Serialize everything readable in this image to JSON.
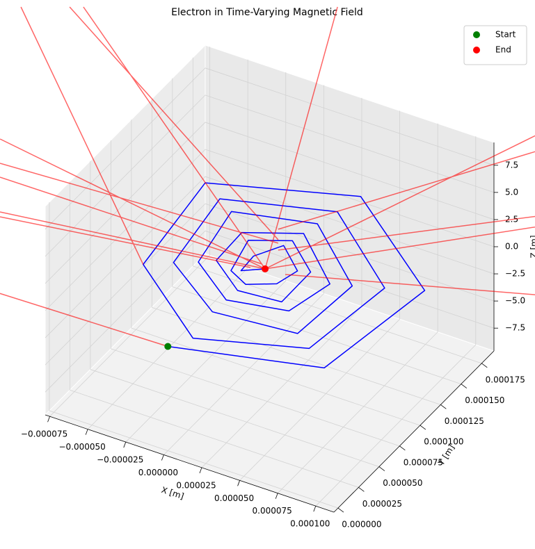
{
  "chart_data": {
    "type": "line3d",
    "title": "Electron in Time-Varying Magnetic Field",
    "xlabel": "X [m]",
    "ylabel": "Y [m]",
    "zlabel": "Z [m]",
    "xlim": [
      -7.8e-05,
      0.000112
    ],
    "ylim": [
      -5e-06,
      0.00019
    ],
    "zlim": [
      -9.6,
      9.6
    ],
    "xticks": [
      {
        "value": -7.5e-05,
        "label": "−0.000075"
      },
      {
        "value": -5e-05,
        "label": "−0.000050"
      },
      {
        "value": -2.5e-05,
        "label": "−0.000025"
      },
      {
        "value": 0,
        "label": "0.000000"
      },
      {
        "value": 2.5e-05,
        "label": "0.000025"
      },
      {
        "value": 5e-05,
        "label": "0.000050"
      },
      {
        "value": 7.5e-05,
        "label": "0.000075"
      },
      {
        "value": 0.0001,
        "label": "0.000100"
      }
    ],
    "yticks": [
      {
        "value": 0,
        "label": "0.000000"
      },
      {
        "value": 2.5e-05,
        "label": "0.000025"
      },
      {
        "value": 5e-05,
        "label": "0.000050"
      },
      {
        "value": 7.5e-05,
        "label": "0.000075"
      },
      {
        "value": 0.0001,
        "label": "0.000100"
      },
      {
        "value": 0.000125,
        "label": "0.000125"
      },
      {
        "value": 0.00015,
        "label": "0.000150"
      },
      {
        "value": 0.000175,
        "label": "0.000175"
      }
    ],
    "zticks": [
      {
        "value": -7.5,
        "label": "−7.5"
      },
      {
        "value": -5,
        "label": "−5.0"
      },
      {
        "value": -2.5,
        "label": "−2.5"
      },
      {
        "value": 0,
        "label": "0.0"
      },
      2.5,
      {
        "value": 5,
        "label": "5.0"
      },
      7.5
    ],
    "grid": true,
    "legend": "upper right",
    "series": [
      {
        "color": "#0000ff",
        "mode": "lines",
        "x": [
          0,
          7.7e-05,
          9.4e-05,
          2.7e-05,
          -5.1e-05,
          -4.7e-05,
          3e-06,
          6e-05,
          7.3e-05,
          2.3e-05,
          -3.6e-05,
          -3.3e-05,
          5e-06,
          4.7e-05,
          5.6e-05,
          1.9e-05,
          -2.4e-05,
          -2.1e-05,
          6e-06,
          3.7e-05,
          4.4e-05,
          1.7e-05,
          -1.4e-05,
          -1.3e-05,
          7e-06,
          2.9e-05,
          3.4e-05,
          1.5e-05,
          -7e-06,
          -6e-06,
          8e-06,
          2.3e-05,
          2.7e-05,
          1.3e-05,
          -2e-06,
          -1e-06,
          1e-05
        ],
        "y": [
          0,
          4.8e-05,
          0.000139,
          0.000185,
          0.00014,
          5.7e-05,
          2.5e-05,
          6.1e-05,
          0.000129,
          0.000164,
          0.00013,
          6.8e-05,
          4.5e-05,
          7.1e-05,
          0.000121,
          0.000147,
          0.000122,
          7.6e-05,
          6e-05,
          7.9e-05,
          0.000116,
          0.000134,
          0.000116,
          8.3e-05,
          7.2e-05,
          8.5e-05,
          0.000111,
          0.000124,
          0.000111,
          8.8e-05,
          8e-05,
          9e-05,
          0.000108,
          0.000117,
          0.000108,
          9.1e-05,
          0.0001
        ],
        "z": [
          0,
          -2,
          -1,
          1,
          2,
          1,
          -1,
          -2,
          -1,
          1,
          2,
          1,
          0,
          -2,
          -1,
          1,
          2,
          1,
          0,
          -1,
          -1,
          1,
          1,
          1,
          0,
          -1,
          0,
          1,
          1,
          0,
          0,
          0,
          0,
          1,
          0,
          0,
          0
        ]
      },
      {
        "color": "#ff0000",
        "alpha": 0.6,
        "mode": "lines",
        "x": [
          -0.0001177,
          0,
          null,
          -4.7e-05,
          -0.0002386,
          null,
          -0.0002078,
          1e-05,
          null,
          -0.0002146,
          2.2e-06,
          null,
          -0.0001843,
          1e-05,
          null,
          -0.0001724,
          3.9e-06,
          null,
          -0.0001656,
          6.2e-06,
          null,
          -0.0001486,
          1e-05,
          null,
          -0.0001462,
          2.1e-06,
          null,
          -8.25e-05,
          1e-05,
          null,
          7.99e-05,
          1e-05,
          null,
          8.84e-05,
          -2.9e-06,
          null,
          0.0001207,
          7.3e-06,
          null,
          0.0001258,
          1e-05,
          null,
          0.0001598,
          2.27e-05
        ],
        "y": [
          -3.5e-06,
          0,
          null,
          5.7e-05,
          0.0002628,
          null,
          0.0002819,
          0.0001,
          null,
          0.0002777,
          0.0001304,
          null,
          0.0001368,
          0.0001,
          null,
          0.0001147,
          0.0001273,
          null,
          0.0001021,
          0.0001035,
          null,
          7.06e-05,
          0.0001,
          null,
          6.62e-05,
          9.67e-05,
          null,
          0.0003595,
          0.0001,
          null,
          0.0003088,
          0.0001,
          null,
          0.0002931,
          0.0001399,
          null,
          0.0002332,
          0.000121,
          null,
          0.0002238,
          0.0001,
          null,
          0.0001608,
          0.0001011
        ],
        "z": [
          0,
          0,
          null,
          1,
          0,
          null,
          0,
          0,
          null,
          0,
          0,
          null,
          0,
          0,
          null,
          0,
          0,
          null,
          0,
          0,
          null,
          0,
          0,
          null,
          0,
          0,
          null,
          0,
          0,
          null,
          0,
          0,
          null,
          0,
          0,
          null,
          0,
          0,
          null,
          0,
          0,
          null,
          0,
          0
        ]
      },
      {
        "name": "Start",
        "color": "#008000",
        "mode": "markers",
        "x": [
          0
        ],
        "y": [
          0
        ],
        "z": [
          0
        ]
      },
      {
        "name": "End",
        "color": "#ff0000",
        "mode": "markers",
        "x": [
          1e-05
        ],
        "y": [
          0.0001
        ],
        "z": [
          0
        ]
      }
    ]
  }
}
